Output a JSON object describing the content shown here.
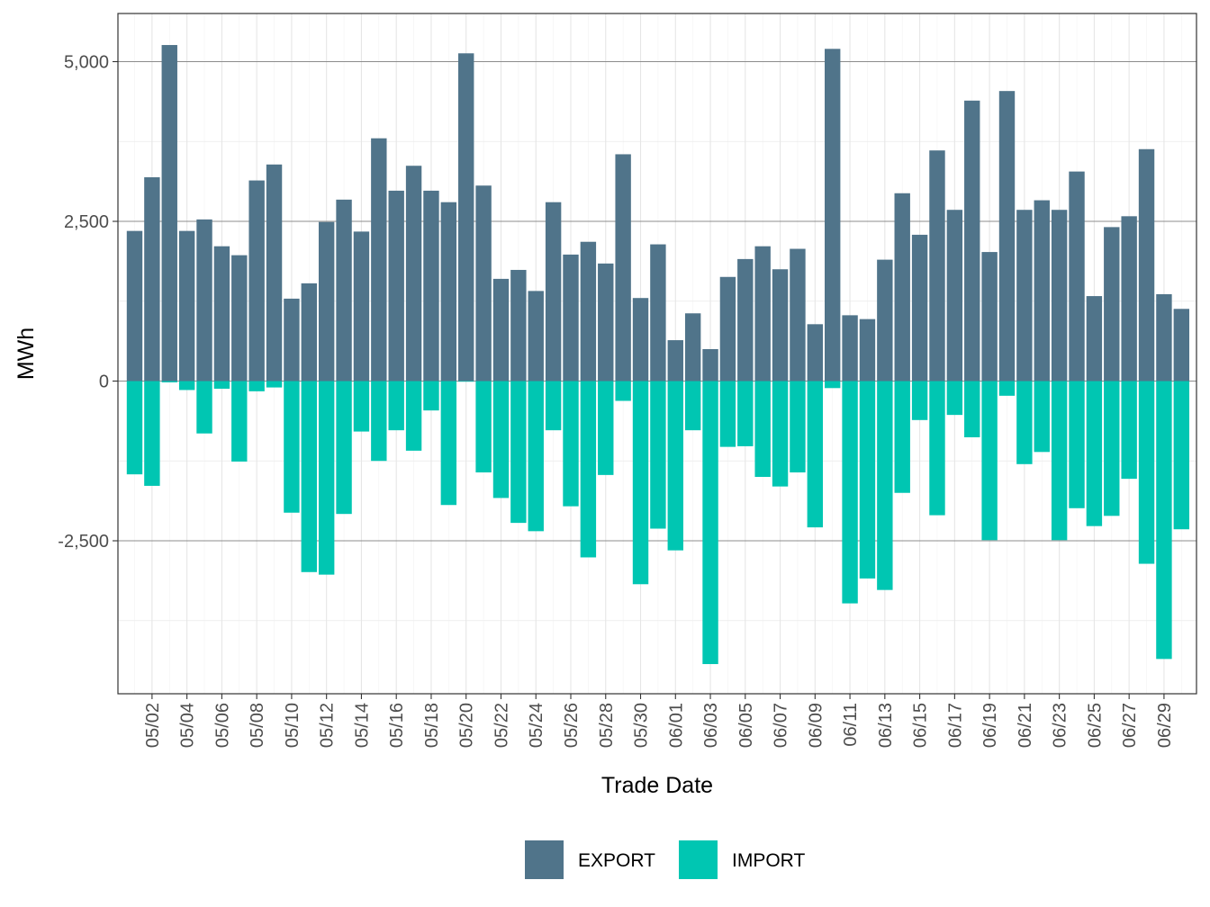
{
  "chart_data": {
    "type": "bar",
    "stacked": "diverging",
    "xlabel": "Trade Date",
    "ylabel": "MWh",
    "ylim": [
      -4800,
      5500
    ],
    "yticks": [
      5000,
      2500,
      0,
      -2500
    ],
    "ytick_labels": [
      "5,000",
      "2,500",
      "0",
      "-2,500"
    ],
    "grid": true,
    "legend_position": "bottom",
    "categories": [
      "05/01",
      "05/02",
      "05/03",
      "05/04",
      "05/05",
      "05/06",
      "05/07",
      "05/08",
      "05/09",
      "05/10",
      "05/11",
      "05/12",
      "05/13",
      "05/14",
      "05/15",
      "05/16",
      "05/17",
      "05/18",
      "05/19",
      "05/20",
      "05/21",
      "05/22",
      "05/23",
      "05/24",
      "05/25",
      "05/26",
      "05/27",
      "05/28",
      "05/29",
      "05/30",
      "05/31",
      "06/01",
      "06/02",
      "06/03",
      "06/04",
      "06/05",
      "06/06",
      "06/07",
      "06/08",
      "06/09",
      "06/10",
      "06/11",
      "06/12",
      "06/13",
      "06/14",
      "06/15",
      "06/16",
      "06/17",
      "06/18",
      "06/19",
      "06/20",
      "06/21",
      "06/22",
      "06/23",
      "06/24",
      "06/25",
      "06/26",
      "06/27",
      "06/28",
      "06/29",
      "06/30"
    ],
    "xtick_labels": [
      "05/02",
      "05/04",
      "05/06",
      "05/08",
      "05/10",
      "05/12",
      "05/14",
      "05/16",
      "05/18",
      "05/20",
      "05/22",
      "05/24",
      "05/26",
      "05/28",
      "05/30",
      "06/01",
      "06/03",
      "06/05",
      "06/07",
      "06/09",
      "06/11",
      "06/13",
      "06/15",
      "06/17",
      "06/19",
      "06/21",
      "06/23",
      "06/25",
      "06/27",
      "06/29"
    ],
    "series": [
      {
        "name": "EXPORT",
        "color": "#50748a",
        "values": [
          2350,
          3190,
          5260,
          2350,
          2530,
          2110,
          1970,
          3140,
          3390,
          1290,
          1530,
          2490,
          2840,
          2340,
          3800,
          2980,
          3370,
          2980,
          2800,
          5130,
          3060,
          1600,
          1740,
          1410,
          2800,
          1980,
          2180,
          1840,
          3550,
          1300,
          2140,
          640,
          1060,
          500,
          1630,
          1910,
          2110,
          1750,
          2070,
          890,
          5200,
          1030,
          970,
          1900,
          2940,
          2290,
          3610,
          2680,
          4390,
          2020,
          4540,
          2680,
          2830,
          2680,
          3280,
          1330,
          2410,
          2580,
          3630,
          1360,
          1130
        ]
      },
      {
        "name": "IMPORT",
        "color": "#00c6b2",
        "values": [
          -1460,
          -1640,
          -20,
          -140,
          -820,
          -120,
          -1260,
          -160,
          -100,
          -2060,
          -2990,
          -3030,
          -2080,
          -790,
          -1250,
          -770,
          -1090,
          -460,
          -1940,
          -10,
          -1430,
          -1830,
          -2220,
          -2350,
          -770,
          -1960,
          -2760,
          -1470,
          -310,
          -3180,
          -2310,
          -2650,
          -770,
          -4430,
          -1030,
          -1020,
          -1500,
          -1650,
          -1430,
          -2290,
          -110,
          -3480,
          -3090,
          -3270,
          -1750,
          -610,
          -2100,
          -530,
          -880,
          -2490,
          -230,
          -1300,
          -1110,
          -2490,
          -1990,
          -2270,
          -2110,
          -1530,
          -2860,
          -4350,
          -2320
        ]
      }
    ]
  }
}
